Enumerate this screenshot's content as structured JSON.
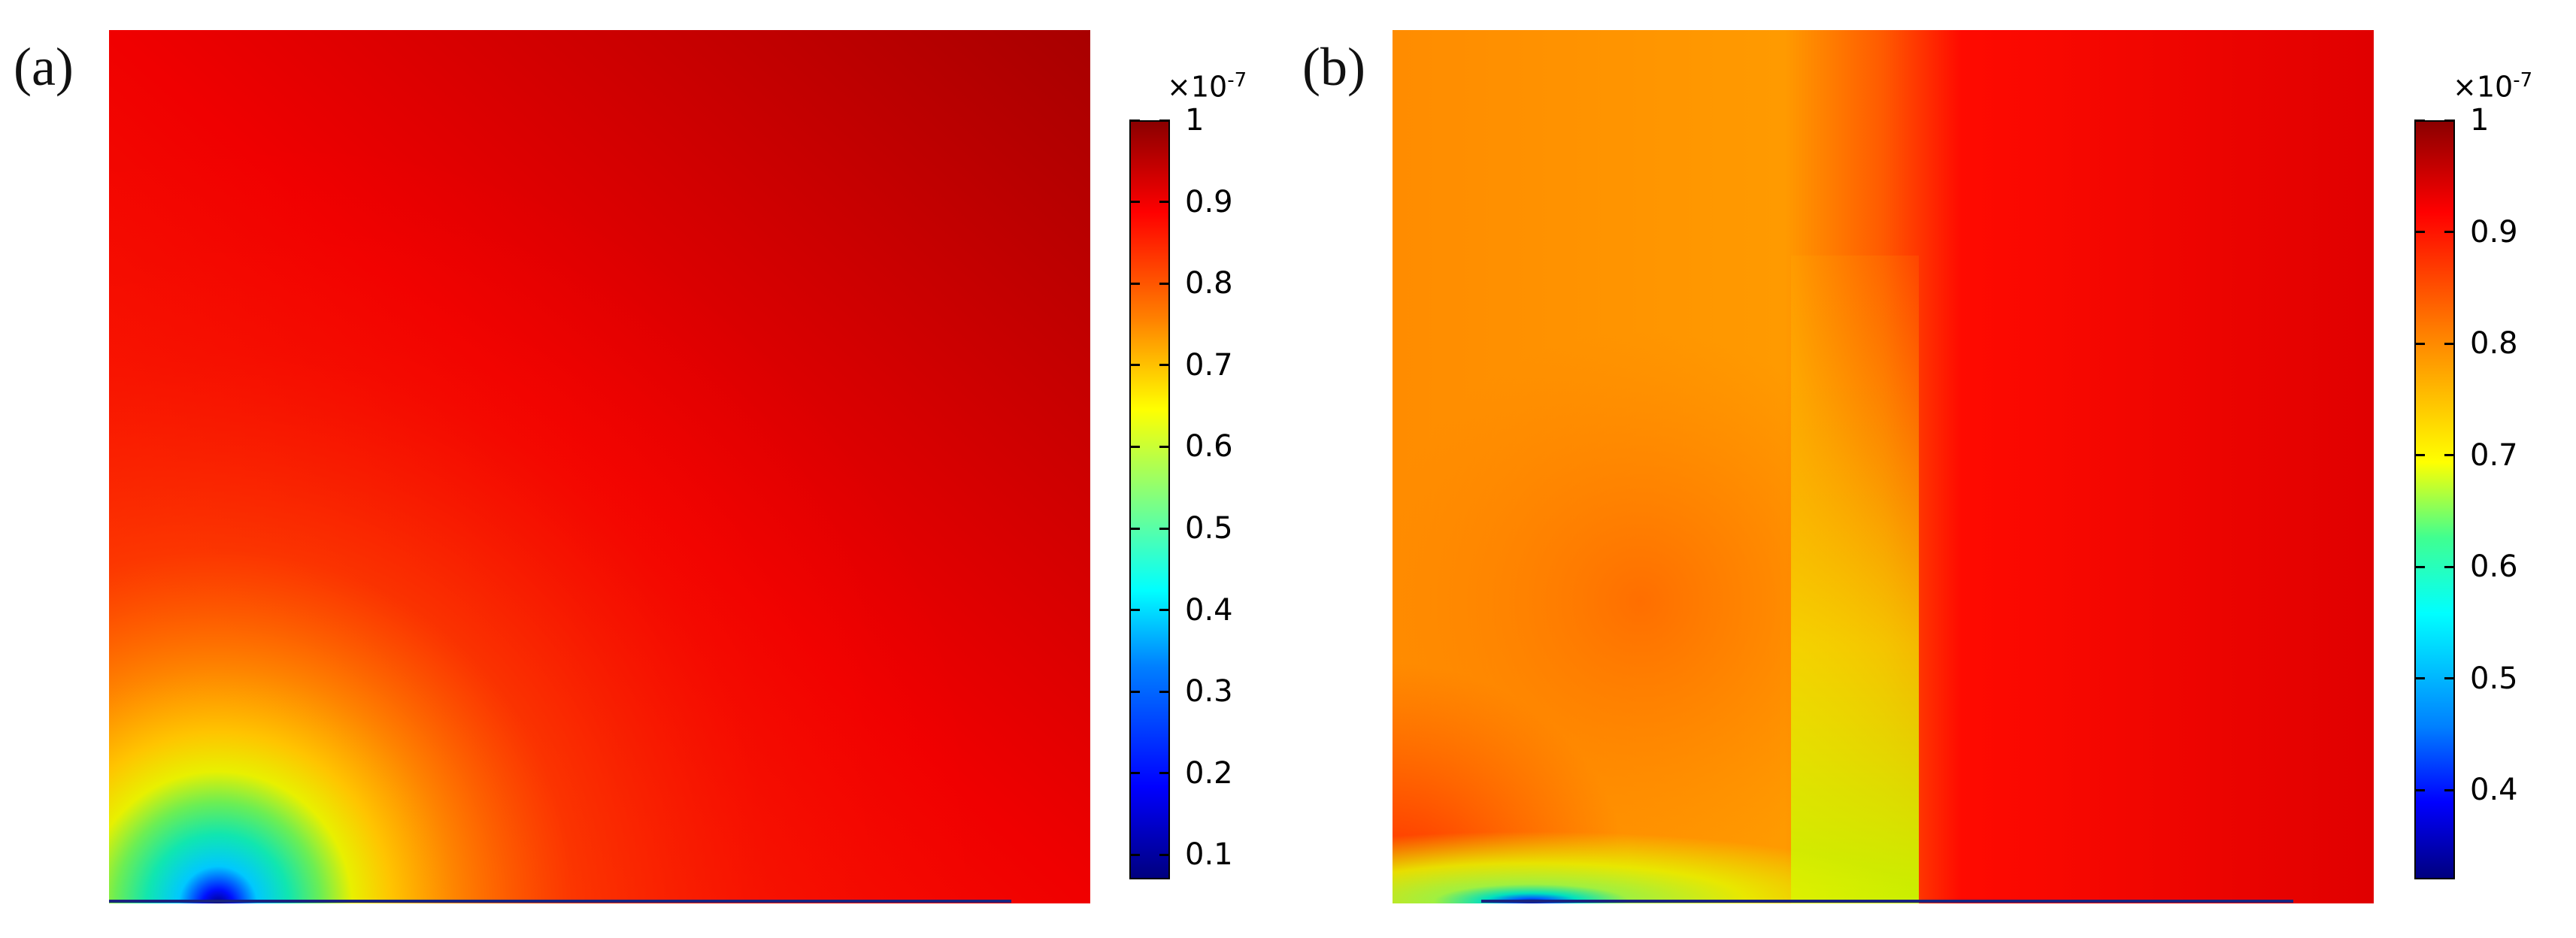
{
  "chart_data": [
    {
      "type": "heatmap",
      "panel_label": "(a)",
      "colorbar": {
        "multiplier": "×10",
        "exponent": "-7",
        "range": [
          0.07,
          1.0
        ],
        "ticks": [
          {
            "value": 1.0,
            "label": "1"
          },
          {
            "value": 0.9,
            "label": "0.9"
          },
          {
            "value": 0.8,
            "label": "0.8"
          },
          {
            "value": 0.7,
            "label": "0.7"
          },
          {
            "value": 0.6,
            "label": "0.6"
          },
          {
            "value": 0.5,
            "label": "0.5"
          },
          {
            "value": 0.4,
            "label": "0.4"
          },
          {
            "value": 0.3,
            "label": "0.3"
          },
          {
            "value": 0.2,
            "label": "0.2"
          },
          {
            "value": 0.1,
            "label": "0.1"
          }
        ],
        "colormap": "jet"
      }
    },
    {
      "type": "heatmap",
      "panel_label": "(b)",
      "colorbar": {
        "multiplier": "×10",
        "exponent": "-7",
        "range": [
          0.32,
          1.0
        ],
        "ticks": [
          {
            "value": 1.0,
            "label": "1"
          },
          {
            "value": 0.9,
            "label": "0.9"
          },
          {
            "value": 0.8,
            "label": "0.8"
          },
          {
            "value": 0.7,
            "label": "0.7"
          },
          {
            "value": 0.6,
            "label": "0.6"
          },
          {
            "value": 0.5,
            "label": "0.5"
          },
          {
            "value": 0.4,
            "label": "0.4"
          }
        ],
        "colormap": "jet"
      }
    }
  ]
}
